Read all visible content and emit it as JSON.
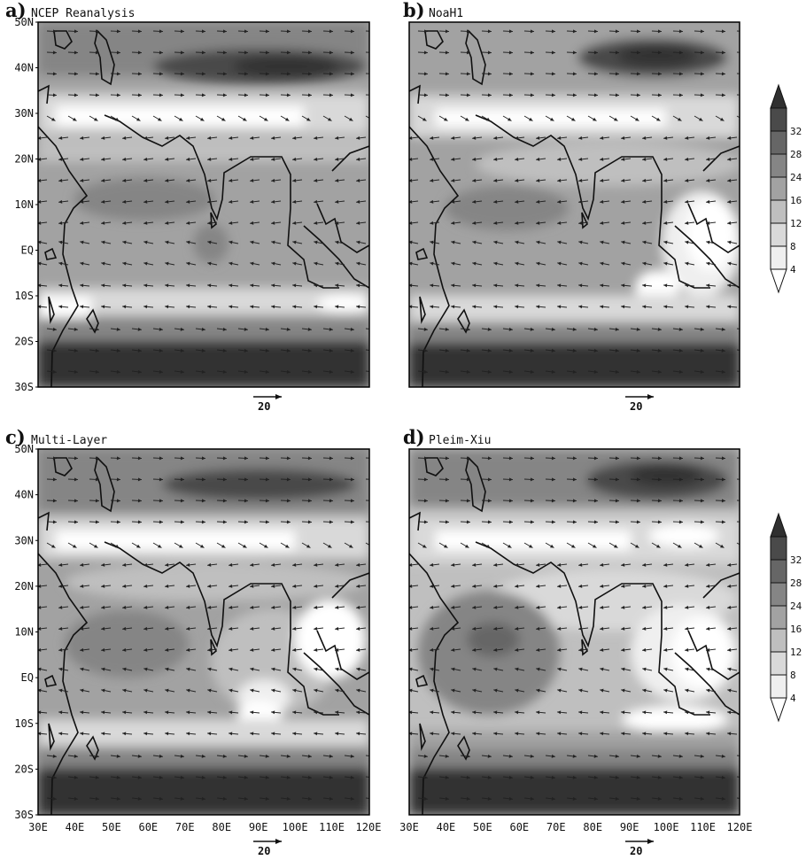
{
  "figure": {
    "type": "map-panels",
    "variable": "wind vectors over shaded wind speed",
    "lon_range": [
      30,
      120
    ],
    "lat_range": [
      -30,
      50
    ],
    "shading_scale": [
      0,
      4,
      8,
      12,
      16,
      24,
      28,
      32,
      36
    ],
    "shading_colors": [
      "#ffffff",
      "#efefef",
      "#d9d9d9",
      "#bfbfbf",
      "#a2a2a2",
      "#858585",
      "#666666",
      "#4a4a4a",
      "#303030"
    ],
    "vector_color": "#222222",
    "coastline_color": "#101010"
  },
  "panels": [
    {
      "letter": "a)",
      "name": "NCEP Reanalysis",
      "ref_vector": "20"
    },
    {
      "letter": "b)",
      "name": "NoaH1",
      "ref_vector": "20"
    },
    {
      "letter": "c)",
      "name": "Multi-Layer",
      "ref_vector": "20"
    },
    {
      "letter": "d)",
      "name": "Pleim-Xiu",
      "ref_vector": "20"
    }
  ],
  "lat_ticks": [
    "50N",
    "40N",
    "30N",
    "20N",
    "10N",
    "EQ",
    "10S",
    "20S",
    "30S"
  ],
  "lon_ticks": [
    "30E",
    "40E",
    "50E",
    "60E",
    "70E",
    "80E",
    "90E",
    "100E",
    "110E",
    "120E"
  ],
  "colorbar_levels": [
    "4",
    "8",
    "12",
    "16",
    "24",
    "28",
    "32"
  ],
  "colorbar_colors": [
    "#ffffff",
    "#efefef",
    "#d9d9d9",
    "#bfbfbf",
    "#a2a2a2",
    "#858585",
    "#666666",
    "#4a4a4a",
    "#303030"
  ]
}
